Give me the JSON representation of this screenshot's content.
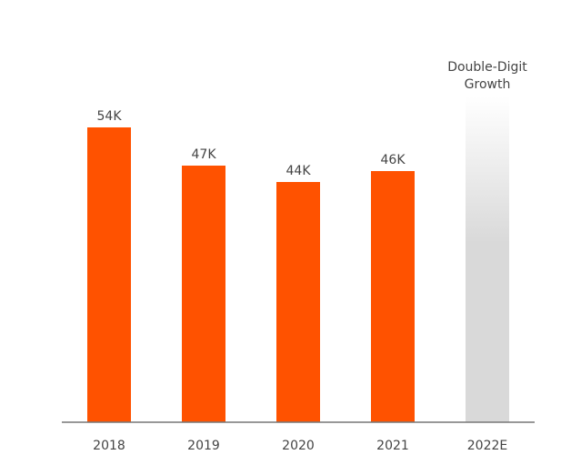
{
  "chart_data": {
    "type": "bar",
    "title": "",
    "xlabel": "",
    "ylabel": "",
    "categories": [
      "2018",
      "2019",
      "2020",
      "2021",
      "2022E"
    ],
    "values": [
      54,
      47,
      44,
      46,
      null
    ],
    "data_labels": [
      "54K",
      "47K",
      "44K",
      "46K",
      ""
    ],
    "unit": "K",
    "ylim": [
      0,
      60
    ],
    "grid": false,
    "legend": "none",
    "projection": {
      "category": "2022E",
      "label_lines": [
        "Double-Digit",
        "Growth"
      ]
    },
    "colors": {
      "bar": "#ff5200",
      "projection_top": "#ffffff",
      "projection_bottom": "#d9d9d9",
      "axis": "#777777",
      "text": "#444444"
    }
  }
}
